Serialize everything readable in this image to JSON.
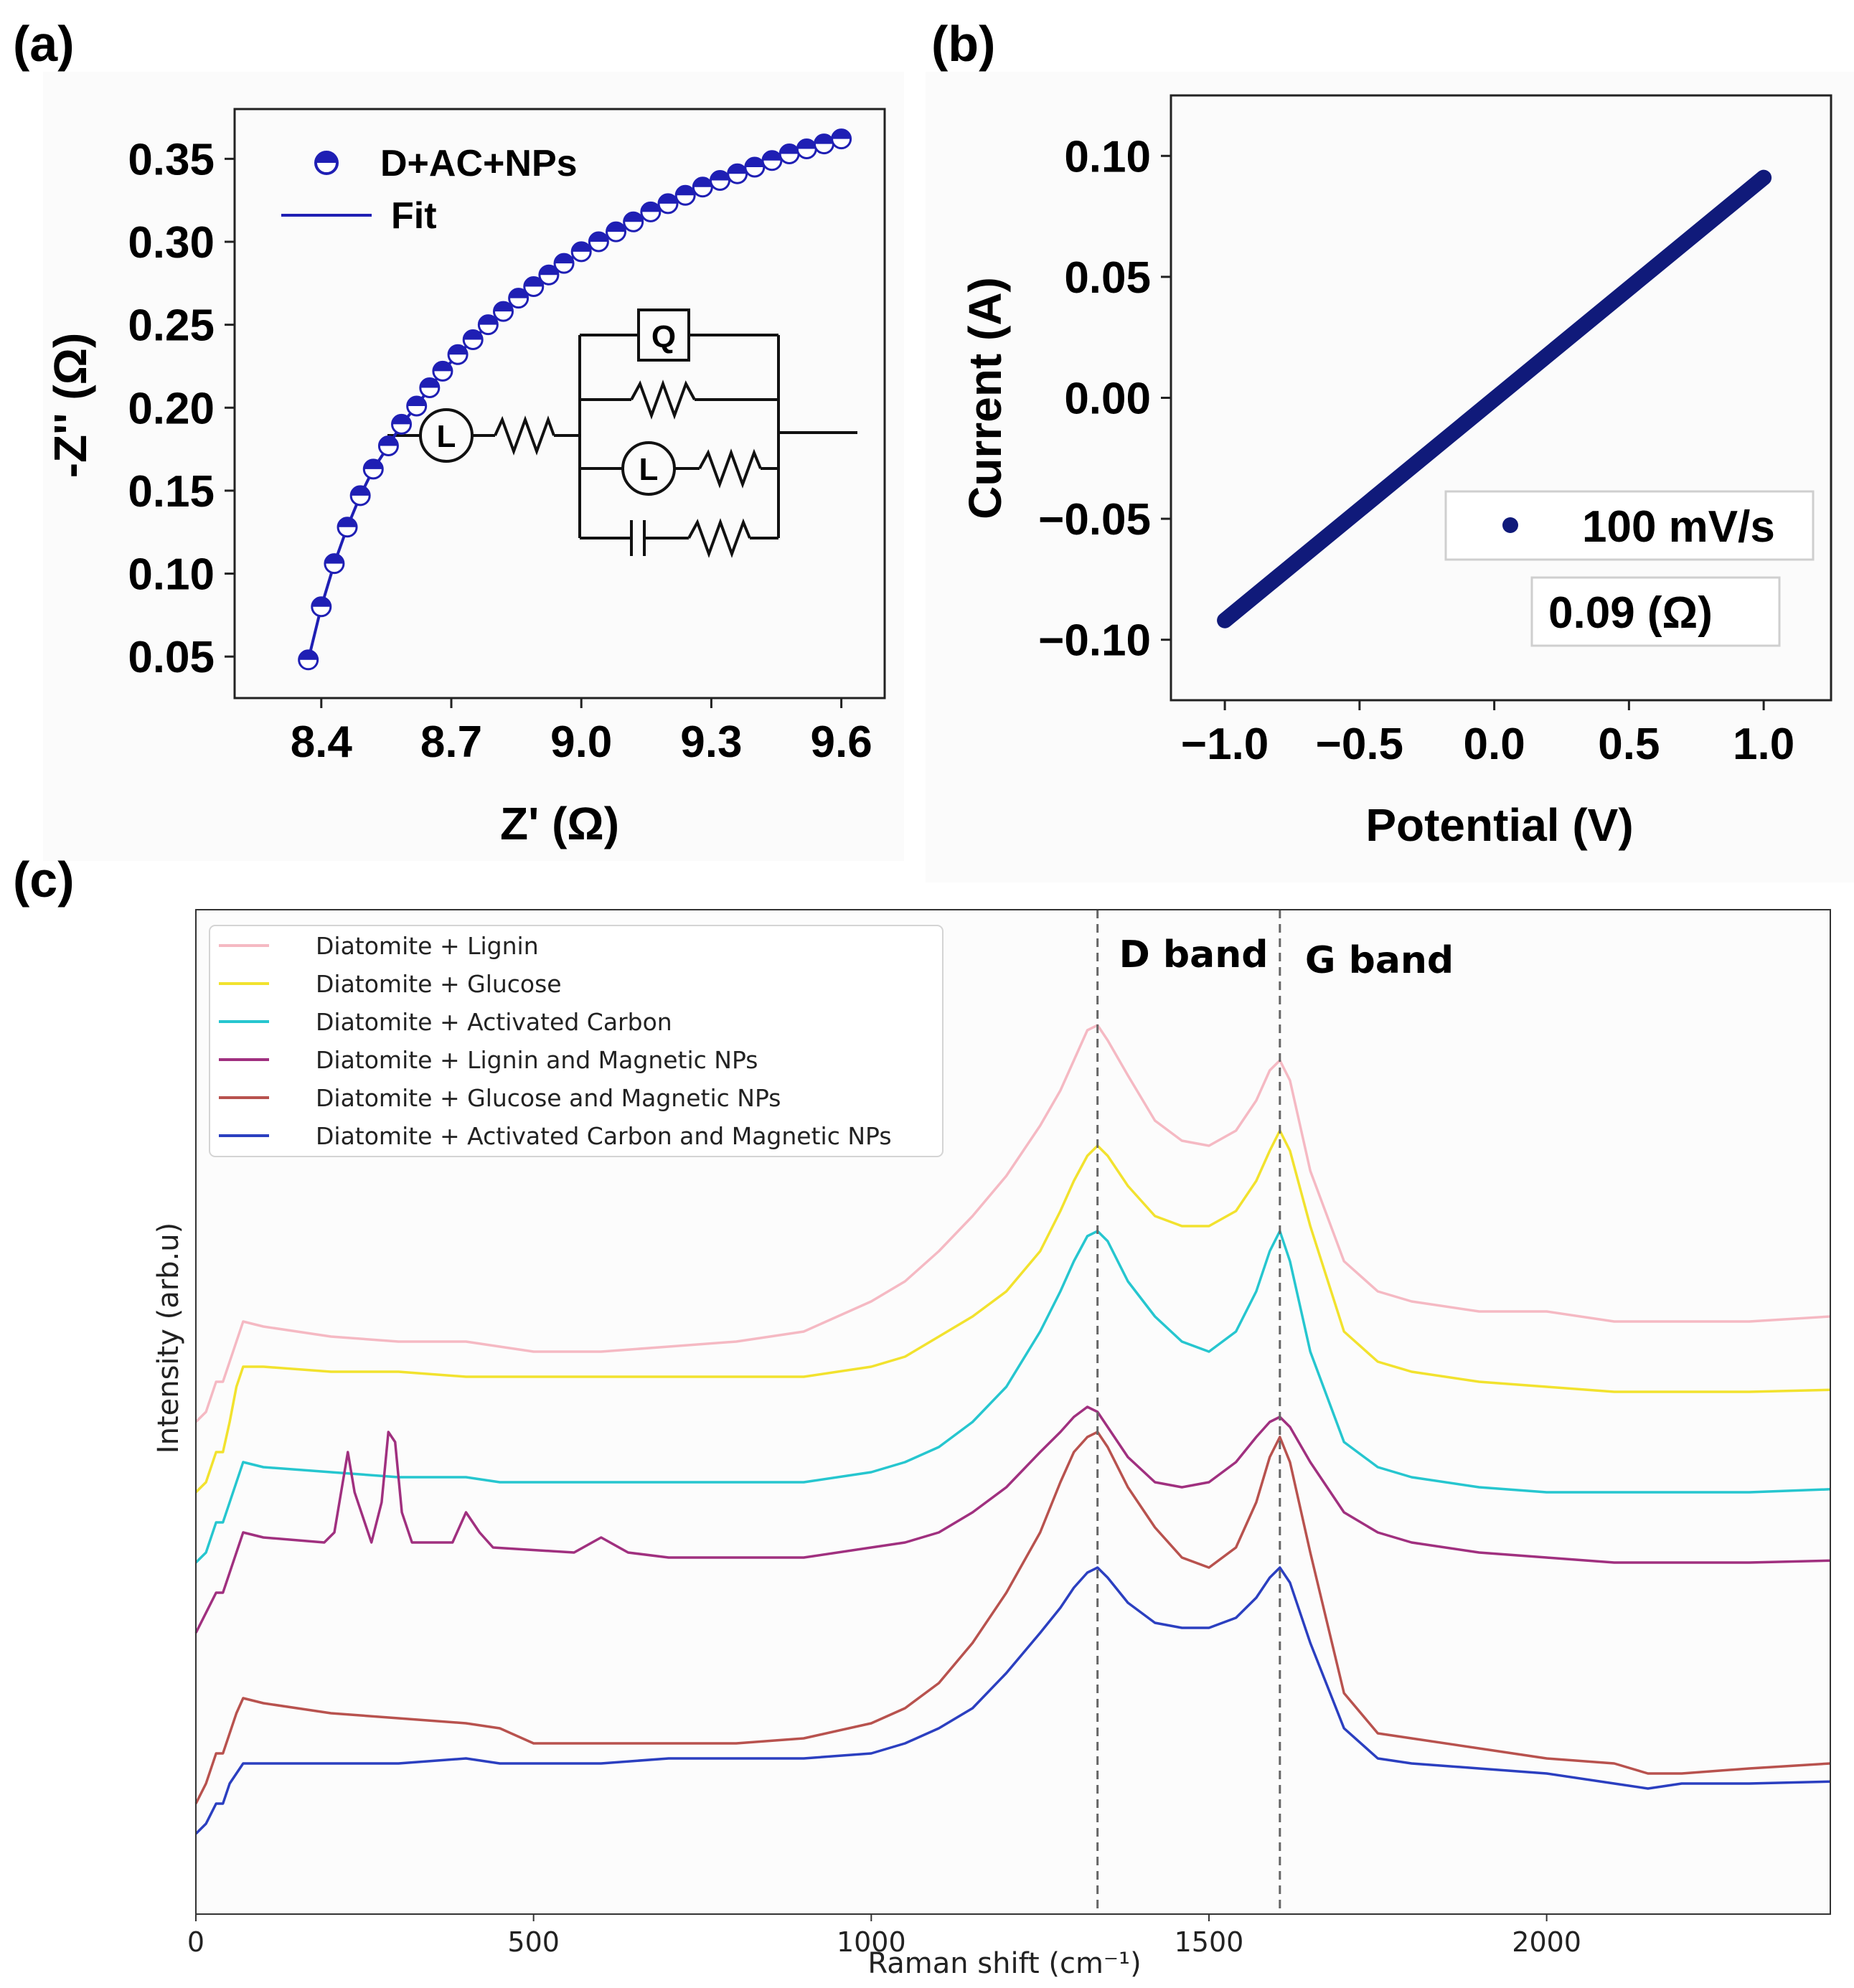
{
  "panels": {
    "a": {
      "letter": "(a)"
    },
    "b": {
      "letter": "(b)"
    },
    "c": {
      "letter": "(c)"
    }
  },
  "chart_data": [
    {
      "id": "a",
      "type": "scatter",
      "title": "",
      "xlabel": "Z' (Ω)",
      "ylabel": "-Z'' (Ω)",
      "xlim": [
        8.2,
        9.7
      ],
      "ylim": [
        0.025,
        0.38
      ],
      "xticks": [
        "8.4",
        "8.7",
        "9.0",
        "9.3",
        "9.6"
      ],
      "xtick_values": [
        8.4,
        8.7,
        9.0,
        9.3,
        9.6
      ],
      "yticks": [
        "0.05",
        "0.10",
        "0.15",
        "0.20",
        "0.25",
        "0.30",
        "0.35"
      ],
      "ytick_values": [
        0.05,
        0.1,
        0.15,
        0.2,
        0.25,
        0.3,
        0.35
      ],
      "series": [
        {
          "name": "D+AC+NPs",
          "kind": "markers",
          "color": "#1f1fb4",
          "x": [
            8.37,
            8.4,
            8.43,
            8.46,
            8.49,
            8.52,
            8.555,
            8.585,
            8.62,
            8.65,
            8.68,
            8.715,
            8.75,
            8.785,
            8.82,
            8.855,
            8.89,
            8.925,
            8.96,
            9.0,
            9.04,
            9.08,
            9.12,
            9.16,
            9.2,
            9.24,
            9.28,
            9.32,
            9.36,
            9.4,
            9.44,
            9.48,
            9.52,
            9.56,
            9.6
          ],
          "y": [
            0.048,
            0.08,
            0.106,
            0.128,
            0.147,
            0.163,
            0.177,
            0.19,
            0.201,
            0.212,
            0.222,
            0.232,
            0.241,
            0.25,
            0.258,
            0.266,
            0.273,
            0.28,
            0.287,
            0.294,
            0.3,
            0.306,
            0.312,
            0.318,
            0.323,
            0.328,
            0.333,
            0.337,
            0.341,
            0.345,
            0.349,
            0.353,
            0.356,
            0.359,
            0.362
          ]
        },
        {
          "name": "Fit",
          "kind": "line",
          "color": "#1f1fb4",
          "x": [
            8.37,
            8.4,
            8.43,
            8.46,
            8.49,
            8.52,
            8.555,
            8.585,
            8.62,
            8.65,
            8.68,
            8.715,
            8.75,
            8.785,
            8.82,
            8.855,
            8.89,
            8.925,
            8.96,
            9.0,
            9.04,
            9.08,
            9.12,
            9.16,
            9.2,
            9.24,
            9.28,
            9.32,
            9.36,
            9.4,
            9.44,
            9.48,
            9.52,
            9.56,
            9.6
          ],
          "y": [
            0.048,
            0.08,
            0.106,
            0.128,
            0.147,
            0.163,
            0.177,
            0.19,
            0.201,
            0.212,
            0.222,
            0.232,
            0.241,
            0.25,
            0.258,
            0.266,
            0.273,
            0.28,
            0.287,
            0.294,
            0.3,
            0.306,
            0.312,
            0.318,
            0.323,
            0.328,
            0.333,
            0.337,
            0.341,
            0.345,
            0.349,
            0.353,
            0.356,
            0.359,
            0.362
          ]
        }
      ],
      "legend": [
        {
          "label": "D+AC+NPs",
          "kind": "marker"
        },
        {
          "label": "Fit",
          "kind": "line"
        }
      ],
      "circuit": {
        "q_label": "Q",
        "l1_label": "L",
        "l2_label": "L"
      }
    },
    {
      "id": "b",
      "type": "line",
      "title": "",
      "xlabel": "Potential (V)",
      "ylabel": "Current (A)",
      "xlim": [
        -1.2,
        1.25
      ],
      "ylim": [
        -0.125,
        0.125
      ],
      "xticks": [
        "−1.0",
        "−0.5",
        "0.0",
        "0.5",
        "1.0"
      ],
      "xtick_values": [
        -1.0,
        -0.5,
        0.0,
        0.5,
        1.0
      ],
      "yticks": [
        "−0.10",
        "−0.05",
        "0.00",
        "0.05",
        "0.10"
      ],
      "ytick_values": [
        -0.1,
        -0.05,
        0.0,
        0.05,
        0.1
      ],
      "series": [
        {
          "name": "100 mV/s",
          "color": "#101a7a",
          "x": [
            -1.0,
            1.0
          ],
          "y": [
            -0.092,
            0.091
          ]
        }
      ],
      "legend": [
        {
          "label": "100 mV/s"
        }
      ],
      "annotation": "0.09 (Ω)"
    },
    {
      "id": "c",
      "type": "line",
      "title": "",
      "xlabel": "Raman shift (cm⁻¹)",
      "ylabel": "Intensity (arb.u)",
      "xlim": [
        0,
        2420
      ],
      "ylim": [
        0,
        100
      ],
      "xticks": [
        "0",
        "500",
        "1000",
        "1500",
        "2000"
      ],
      "xtick_values": [
        0,
        500,
        1000,
        1500,
        2000
      ],
      "vlines": [
        {
          "x": 1335,
          "label": "D band"
        },
        {
          "x": 1605,
          "label": "G band"
        }
      ],
      "x": [
        0,
        15,
        30,
        40,
        50,
        60,
        70,
        100,
        200,
        300,
        400,
        450,
        500,
        600,
        700,
        800,
        900,
        1000,
        1050,
        1100,
        1150,
        1200,
        1250,
        1280,
        1300,
        1320,
        1335,
        1350,
        1380,
        1420,
        1460,
        1500,
        1540,
        1570,
        1590,
        1605,
        1620,
        1650,
        1700,
        1750,
        1800,
        1900,
        2000,
        2100,
        2150,
        2200,
        2300,
        2420
      ],
      "series": [
        {
          "name": "Diatomite + Lignin",
          "color": "#f5b9c3",
          "y": [
            49,
            50,
            53,
            53,
            55,
            57,
            59,
            58.5,
            57.5,
            57,
            57,
            56.5,
            56,
            56,
            56.5,
            57,
            58,
            61,
            63,
            66,
            69.5,
            73.5,
            78.5,
            82,
            85,
            88,
            88.5,
            87,
            83.5,
            79,
            77,
            76.5,
            78,
            81,
            84,
            85,
            83,
            74,
            65,
            62,
            61,
            60,
            60,
            59,
            59,
            59,
            59,
            59.5
          ]
        },
        {
          "name": "Diatomite + Glucose",
          "color": "#f2e22e",
          "y": [
            42,
            43,
            46,
            46,
            49,
            52.5,
            54.5,
            54.5,
            54,
            54,
            53.5,
            53.5,
            53.5,
            53.5,
            53.5,
            53.5,
            53.5,
            54.5,
            55.5,
            57.5,
            59.5,
            62,
            66,
            70,
            73,
            75.5,
            76.5,
            75.5,
            72.5,
            69.5,
            68.5,
            68.5,
            70,
            73,
            76,
            78,
            76,
            68.5,
            58,
            55,
            54,
            53,
            52.5,
            52,
            52,
            52,
            52,
            52.2
          ]
        },
        {
          "name": "Diatomite + Activated Carbon",
          "color": "#26c6cf",
          "y": [
            35,
            36,
            39,
            39,
            41,
            43,
            45,
            44.5,
            44,
            43.5,
            43.5,
            43,
            43,
            43,
            43,
            43,
            43,
            44,
            45,
            46.5,
            49,
            52.5,
            58,
            62,
            65,
            67.5,
            68,
            67,
            63,
            59.5,
            57,
            56,
            58,
            62,
            66,
            68,
            65,
            56,
            47,
            44.5,
            43.5,
            42.5,
            42,
            42,
            42,
            42,
            42,
            42.3
          ]
        },
        {
          "name": "Diatomite + Lignin and Magnetic NPs",
          "color": "#a0307f",
          "y": [
            28,
            30,
            32,
            32,
            34,
            36,
            38,
            37.5,
            37,
            37.5,
            36.5,
            36.5,
            36,
            36,
            35.5,
            35.5,
            35.5,
            36.5,
            37,
            38,
            40,
            42.5,
            46,
            48,
            49.5,
            50.5,
            50,
            48.5,
            45.5,
            43,
            42.5,
            43,
            45,
            47.5,
            49,
            49.5,
            48.5,
            45,
            40,
            38,
            37,
            36,
            35.5,
            35,
            35,
            35,
            35,
            35.2
          ]
        },
        {
          "name": "Diatomite + Glucose and Magnetic NPs",
          "color": "#b8524e",
          "y": [
            11,
            13,
            16,
            16,
            18,
            20,
            21.5,
            21,
            20,
            19.5,
            19,
            18.5,
            17,
            17,
            17,
            17,
            17.5,
            19,
            20.5,
            23,
            27,
            32,
            38,
            43,
            46,
            47.5,
            48,
            46.5,
            42.5,
            38.5,
            35.5,
            34.5,
            36.5,
            41,
            45.5,
            47.5,
            45,
            36,
            22,
            18,
            17.5,
            16.5,
            15.5,
            15,
            14,
            14,
            14.5,
            15
          ]
        },
        {
          "name": "Diatomite + Activated Carbon and Magnetic NPs",
          "color": "#2b3fc0",
          "y": [
            8,
            9,
            11,
            11,
            13,
            14,
            15,
            15,
            15,
            15,
            15.5,
            15,
            15,
            15,
            15.5,
            15.5,
            15.5,
            16,
            17,
            18.5,
            20.5,
            24,
            28,
            30.5,
            32.5,
            34,
            34.5,
            33.5,
            31,
            29,
            28.5,
            28.5,
            29.5,
            31.5,
            33.5,
            34.5,
            33,
            27,
            18.5,
            15.5,
            15,
            14.5,
            14,
            13,
            12.5,
            13,
            13,
            13.2
          ]
        }
      ],
      "peaks_extra": {
        "series_index": 3,
        "x": [
          190,
          205,
          215,
          225,
          235,
          260,
          275,
          285,
          295,
          305,
          320,
          380,
          400,
          420,
          440,
          560,
          600,
          640
        ],
        "y": [
          37,
          38,
          42,
          46,
          42,
          37,
          41,
          48,
          47,
          40,
          37,
          37,
          40,
          38,
          36.5,
          36,
          37.5,
          36
        ]
      }
    }
  ]
}
